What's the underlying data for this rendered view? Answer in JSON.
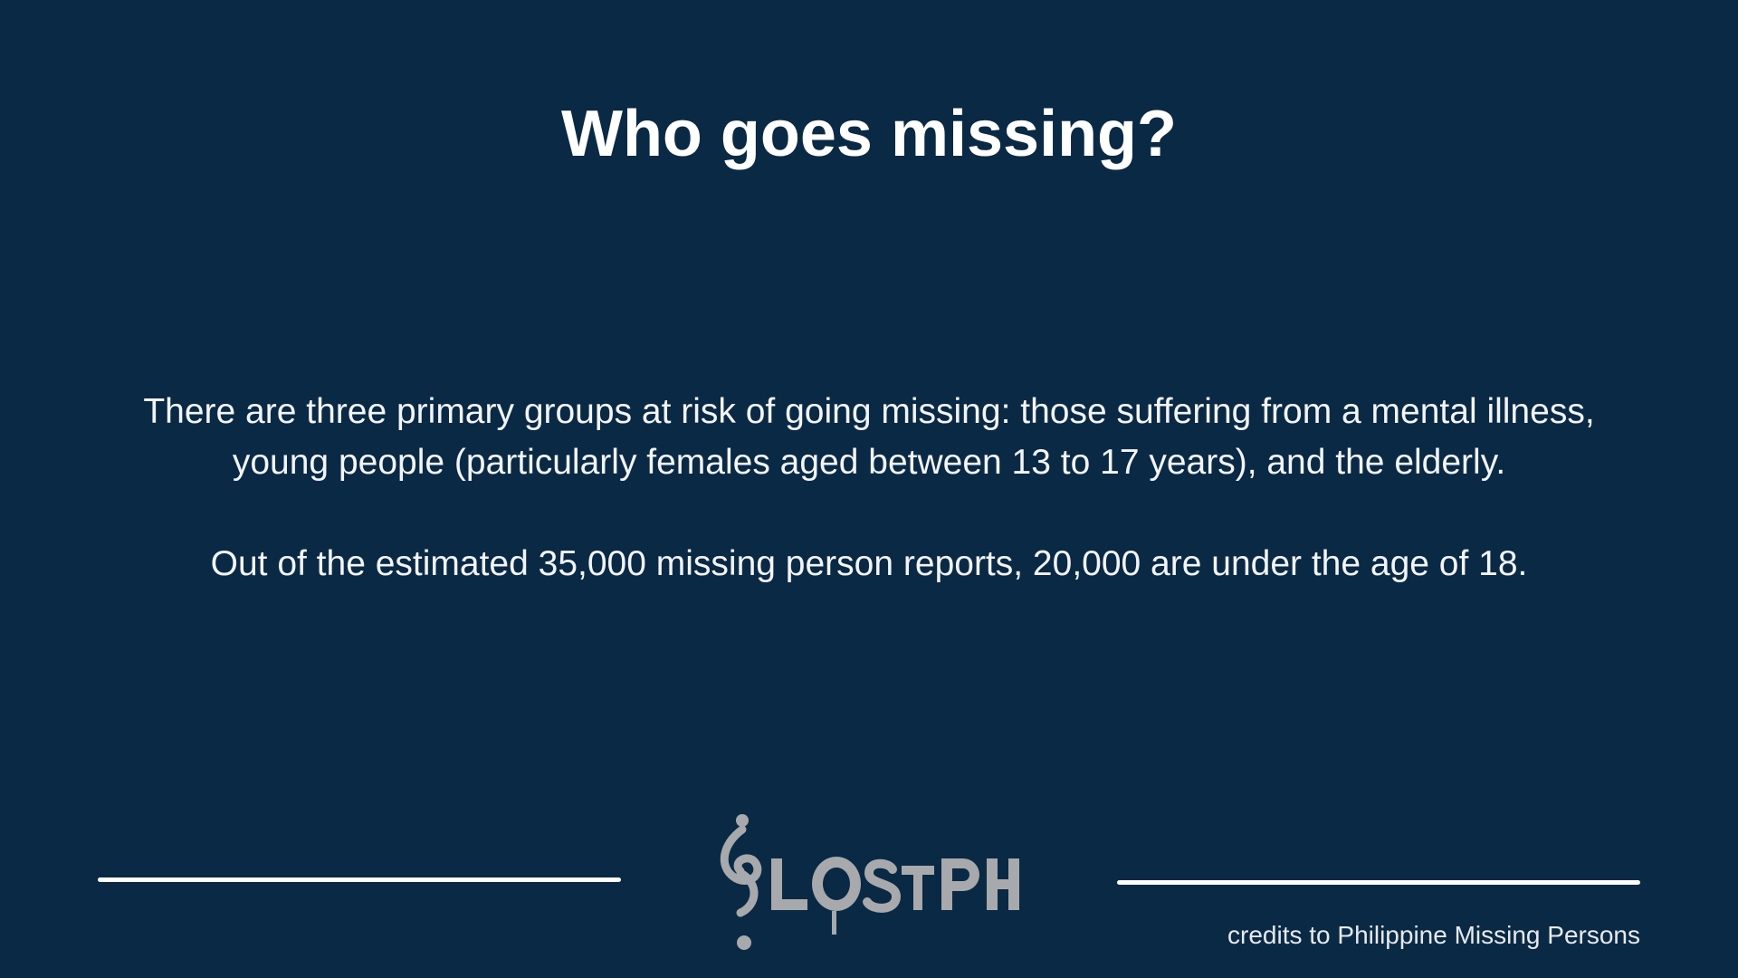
{
  "slide": {
    "title": "Who goes missing?",
    "paragraphs": [
      "There are three primary groups at risk of going missing: those suffering from a mental illness, young people (particularly females aged between 13 to 17 years), and the elderly.",
      "Out of the estimated 35,000 missing person reports, 20,000 are under the age of 18."
    ],
    "logo": {
      "text": "LostPH",
      "icon": "question-mark-clef-icon"
    },
    "credits": "credits to Philippine Missing Persons"
  },
  "colors": {
    "background": "#0a2944",
    "text": "#ffffff",
    "logo": "#a7a9ac"
  }
}
